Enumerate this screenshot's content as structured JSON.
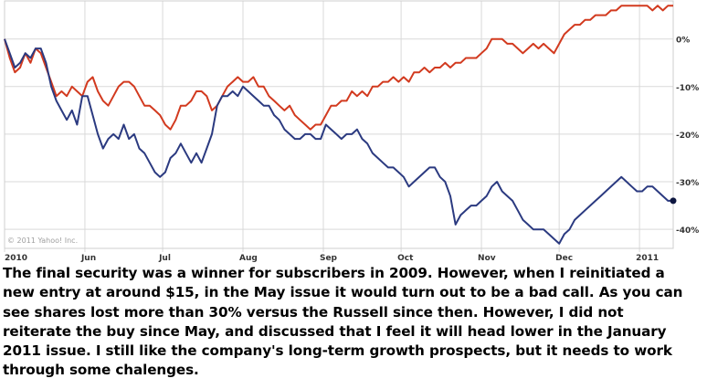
{
  "colors": {
    "russell": "#d23a1f",
    "security": "#2b3a80",
    "grid": "#d9d9d9",
    "axis": "#888888"
  },
  "chart_data": {
    "type": "line",
    "xlabel": "",
    "ylabel": "",
    "y_unit": "percent change",
    "ylim": [
      -44,
      8
    ],
    "x_domain": [
      "2010-05-01",
      "2011-01-14"
    ],
    "x_ticks": [
      {
        "label": "2010",
        "date": "2010-05-01"
      },
      {
        "label": "Jun",
        "date": "2010-06-01"
      },
      {
        "label": "Jul",
        "date": "2010-07-01"
      },
      {
        "label": "Aug",
        "date": "2010-08-01"
      },
      {
        "label": "Sep",
        "date": "2010-09-01"
      },
      {
        "label": "Oct",
        "date": "2010-10-01"
      },
      {
        "label": "Nov",
        "date": "2010-11-01"
      },
      {
        "label": "Dec",
        "date": "2010-12-01"
      },
      {
        "label": "2011",
        "date": "2011-01-01"
      }
    ],
    "y_ticks": [
      {
        "label": "0%",
        "value": 0
      },
      {
        "label": "-10%",
        "value": -10
      },
      {
        "label": "-20%",
        "value": -20
      },
      {
        "label": "-30%",
        "value": -30
      },
      {
        "label": "-40%",
        "value": -40
      }
    ],
    "grid": true,
    "credit": "© 2011 Yahoo! Inc.",
    "series": [
      {
        "color": "#d23a1f",
        "points": [
          [
            "2010-05-01",
            0
          ],
          [
            "2010-05-03",
            -4
          ],
          [
            "2010-05-05",
            -7
          ],
          [
            "2010-05-07",
            -6
          ],
          [
            "2010-05-09",
            -3
          ],
          [
            "2010-05-11",
            -5
          ],
          [
            "2010-05-13",
            -2
          ],
          [
            "2010-05-15",
            -3
          ],
          [
            "2010-05-17",
            -6
          ],
          [
            "2010-05-19",
            -9
          ],
          [
            "2010-05-21",
            -12
          ],
          [
            "2010-05-23",
            -11
          ],
          [
            "2010-05-25",
            -12
          ],
          [
            "2010-05-27",
            -10
          ],
          [
            "2010-05-29",
            -11
          ],
          [
            "2010-05-31",
            -12
          ],
          [
            "2010-06-02",
            -9
          ],
          [
            "2010-06-04",
            -8
          ],
          [
            "2010-06-06",
            -11
          ],
          [
            "2010-06-08",
            -13
          ],
          [
            "2010-06-10",
            -14
          ],
          [
            "2010-06-12",
            -12
          ],
          [
            "2010-06-14",
            -10
          ],
          [
            "2010-06-16",
            -9
          ],
          [
            "2010-06-18",
            -9
          ],
          [
            "2010-06-20",
            -10
          ],
          [
            "2010-06-22",
            -12
          ],
          [
            "2010-06-24",
            -14
          ],
          [
            "2010-06-26",
            -14
          ],
          [
            "2010-06-28",
            -15
          ],
          [
            "2010-06-30",
            -16
          ],
          [
            "2010-07-02",
            -18
          ],
          [
            "2010-07-04",
            -19
          ],
          [
            "2010-07-06",
            -17
          ],
          [
            "2010-07-08",
            -14
          ],
          [
            "2010-07-10",
            -14
          ],
          [
            "2010-07-12",
            -13
          ],
          [
            "2010-07-14",
            -11
          ],
          [
            "2010-07-16",
            -11
          ],
          [
            "2010-07-18",
            -12
          ],
          [
            "2010-07-20",
            -15
          ],
          [
            "2010-07-22",
            -14
          ],
          [
            "2010-07-24",
            -12
          ],
          [
            "2010-07-26",
            -10
          ],
          [
            "2010-07-28",
            -9
          ],
          [
            "2010-07-30",
            -8
          ],
          [
            "2010-08-01",
            -9
          ],
          [
            "2010-08-03",
            -9
          ],
          [
            "2010-08-05",
            -8
          ],
          [
            "2010-08-07",
            -10
          ],
          [
            "2010-08-09",
            -10
          ],
          [
            "2010-08-11",
            -12
          ],
          [
            "2010-08-13",
            -13
          ],
          [
            "2010-08-15",
            -14
          ],
          [
            "2010-08-17",
            -15
          ],
          [
            "2010-08-19",
            -14
          ],
          [
            "2010-08-21",
            -16
          ],
          [
            "2010-08-23",
            -17
          ],
          [
            "2010-08-25",
            -18
          ],
          [
            "2010-08-27",
            -19
          ],
          [
            "2010-08-29",
            -18
          ],
          [
            "2010-08-31",
            -18
          ],
          [
            "2010-09-02",
            -16
          ],
          [
            "2010-09-04",
            -14
          ],
          [
            "2010-09-06",
            -14
          ],
          [
            "2010-09-08",
            -13
          ],
          [
            "2010-09-10",
            -13
          ],
          [
            "2010-09-12",
            -11
          ],
          [
            "2010-09-14",
            -12
          ],
          [
            "2010-09-16",
            -11
          ],
          [
            "2010-09-18",
            -12
          ],
          [
            "2010-09-20",
            -10
          ],
          [
            "2010-09-22",
            -10
          ],
          [
            "2010-09-24",
            -9
          ],
          [
            "2010-09-26",
            -9
          ],
          [
            "2010-09-28",
            -8
          ],
          [
            "2010-09-30",
            -9
          ],
          [
            "2010-10-02",
            -8
          ],
          [
            "2010-10-04",
            -9
          ],
          [
            "2010-10-06",
            -7
          ],
          [
            "2010-10-08",
            -7
          ],
          [
            "2010-10-10",
            -6
          ],
          [
            "2010-10-12",
            -7
          ],
          [
            "2010-10-14",
            -6
          ],
          [
            "2010-10-16",
            -6
          ],
          [
            "2010-10-18",
            -5
          ],
          [
            "2010-10-20",
            -6
          ],
          [
            "2010-10-22",
            -5
          ],
          [
            "2010-10-24",
            -5
          ],
          [
            "2010-10-26",
            -4
          ],
          [
            "2010-10-28",
            -4
          ],
          [
            "2010-10-30",
            -4
          ],
          [
            "2010-11-01",
            -3
          ],
          [
            "2010-11-03",
            -2
          ],
          [
            "2010-11-05",
            0
          ],
          [
            "2010-11-07",
            0
          ],
          [
            "2010-11-09",
            0
          ],
          [
            "2010-11-11",
            -1
          ],
          [
            "2010-11-13",
            -1
          ],
          [
            "2010-11-15",
            -2
          ],
          [
            "2010-11-17",
            -3
          ],
          [
            "2010-11-19",
            -2
          ],
          [
            "2010-11-21",
            -1
          ],
          [
            "2010-11-23",
            -2
          ],
          [
            "2010-11-25",
            -1
          ],
          [
            "2010-11-27",
            -2
          ],
          [
            "2010-11-29",
            -3
          ],
          [
            "2010-12-01",
            -1
          ],
          [
            "2010-12-03",
            1
          ],
          [
            "2010-12-05",
            2
          ],
          [
            "2010-12-07",
            3
          ],
          [
            "2010-12-09",
            3
          ],
          [
            "2010-12-11",
            4
          ],
          [
            "2010-12-13",
            4
          ],
          [
            "2010-12-15",
            5
          ],
          [
            "2010-12-17",
            5
          ],
          [
            "2010-12-19",
            5
          ],
          [
            "2010-12-21",
            6
          ],
          [
            "2010-12-23",
            6
          ],
          [
            "2010-12-25",
            7
          ],
          [
            "2010-12-27",
            7
          ],
          [
            "2010-12-29",
            7
          ],
          [
            "2010-12-31",
            7
          ],
          [
            "2011-01-02",
            7
          ],
          [
            "2011-01-04",
            7
          ],
          [
            "2011-01-06",
            6
          ],
          [
            "2011-01-08",
            7
          ],
          [
            "2011-01-10",
            6
          ],
          [
            "2011-01-12",
            7
          ],
          [
            "2011-01-14",
            7
          ]
        ]
      },
      {
        "color": "#2b3a80",
        "points": [
          [
            "2010-05-01",
            0
          ],
          [
            "2010-05-03",
            -3
          ],
          [
            "2010-05-05",
            -6
          ],
          [
            "2010-05-07",
            -5
          ],
          [
            "2010-05-09",
            -3
          ],
          [
            "2010-05-11",
            -4
          ],
          [
            "2010-05-13",
            -2
          ],
          [
            "2010-05-15",
            -2
          ],
          [
            "2010-05-17",
            -5
          ],
          [
            "2010-05-19",
            -10
          ],
          [
            "2010-05-21",
            -13
          ],
          [
            "2010-05-23",
            -15
          ],
          [
            "2010-05-25",
            -17
          ],
          [
            "2010-05-27",
            -15
          ],
          [
            "2010-05-29",
            -18
          ],
          [
            "2010-05-31",
            -12
          ],
          [
            "2010-06-02",
            -12
          ],
          [
            "2010-06-04",
            -16
          ],
          [
            "2010-06-06",
            -20
          ],
          [
            "2010-06-08",
            -23
          ],
          [
            "2010-06-10",
            -21
          ],
          [
            "2010-06-12",
            -20
          ],
          [
            "2010-06-14",
            -21
          ],
          [
            "2010-06-16",
            -18
          ],
          [
            "2010-06-18",
            -21
          ],
          [
            "2010-06-20",
            -20
          ],
          [
            "2010-06-22",
            -23
          ],
          [
            "2010-06-24",
            -24
          ],
          [
            "2010-06-26",
            -26
          ],
          [
            "2010-06-28",
            -28
          ],
          [
            "2010-06-30",
            -29
          ],
          [
            "2010-07-02",
            -28
          ],
          [
            "2010-07-04",
            -25
          ],
          [
            "2010-07-06",
            -24
          ],
          [
            "2010-07-08",
            -22
          ],
          [
            "2010-07-10",
            -24
          ],
          [
            "2010-07-12",
            -26
          ],
          [
            "2010-07-14",
            -24
          ],
          [
            "2010-07-16",
            -26
          ],
          [
            "2010-07-18",
            -23
          ],
          [
            "2010-07-20",
            -20
          ],
          [
            "2010-07-22",
            -14
          ],
          [
            "2010-07-24",
            -12
          ],
          [
            "2010-07-26",
            -12
          ],
          [
            "2010-07-28",
            -11
          ],
          [
            "2010-07-30",
            -12
          ],
          [
            "2010-08-01",
            -10
          ],
          [
            "2010-08-03",
            -11
          ],
          [
            "2010-08-05",
            -12
          ],
          [
            "2010-08-07",
            -13
          ],
          [
            "2010-08-09",
            -14
          ],
          [
            "2010-08-11",
            -14
          ],
          [
            "2010-08-13",
            -16
          ],
          [
            "2010-08-15",
            -17
          ],
          [
            "2010-08-17",
            -19
          ],
          [
            "2010-08-19",
            -20
          ],
          [
            "2010-08-21",
            -21
          ],
          [
            "2010-08-23",
            -21
          ],
          [
            "2010-08-25",
            -20
          ],
          [
            "2010-08-27",
            -20
          ],
          [
            "2010-08-29",
            -21
          ],
          [
            "2010-08-31",
            -21
          ],
          [
            "2010-09-02",
            -18
          ],
          [
            "2010-09-04",
            -19
          ],
          [
            "2010-09-06",
            -20
          ],
          [
            "2010-09-08",
            -21
          ],
          [
            "2010-09-10",
            -20
          ],
          [
            "2010-09-12",
            -20
          ],
          [
            "2010-09-14",
            -19
          ],
          [
            "2010-09-16",
            -21
          ],
          [
            "2010-09-18",
            -22
          ],
          [
            "2010-09-20",
            -24
          ],
          [
            "2010-09-22",
            -25
          ],
          [
            "2010-09-24",
            -26
          ],
          [
            "2010-09-26",
            -27
          ],
          [
            "2010-09-28",
            -27
          ],
          [
            "2010-09-30",
            -28
          ],
          [
            "2010-10-02",
            -29
          ],
          [
            "2010-10-04",
            -31
          ],
          [
            "2010-10-06",
            -30
          ],
          [
            "2010-10-08",
            -29
          ],
          [
            "2010-10-10",
            -28
          ],
          [
            "2010-10-12",
            -27
          ],
          [
            "2010-10-14",
            -27
          ],
          [
            "2010-10-16",
            -29
          ],
          [
            "2010-10-18",
            -30
          ],
          [
            "2010-10-20",
            -33
          ],
          [
            "2010-10-22",
            -39
          ],
          [
            "2010-10-24",
            -37
          ],
          [
            "2010-10-26",
            -36
          ],
          [
            "2010-10-28",
            -35
          ],
          [
            "2010-10-30",
            -35
          ],
          [
            "2010-11-01",
            -34
          ],
          [
            "2010-11-03",
            -33
          ],
          [
            "2010-11-05",
            -31
          ],
          [
            "2010-11-07",
            -30
          ],
          [
            "2010-11-09",
            -32
          ],
          [
            "2010-11-11",
            -33
          ],
          [
            "2010-11-13",
            -34
          ],
          [
            "2010-11-15",
            -36
          ],
          [
            "2010-11-17",
            -38
          ],
          [
            "2010-11-19",
            -39
          ],
          [
            "2010-11-21",
            -40
          ],
          [
            "2010-11-23",
            -40
          ],
          [
            "2010-11-25",
            -40
          ],
          [
            "2010-11-27",
            -41
          ],
          [
            "2010-11-29",
            -42
          ],
          [
            "2010-12-01",
            -43
          ],
          [
            "2010-12-03",
            -41
          ],
          [
            "2010-12-05",
            -40
          ],
          [
            "2010-12-07",
            -38
          ],
          [
            "2010-12-09",
            -37
          ],
          [
            "2010-12-11",
            -36
          ],
          [
            "2010-12-13",
            -35
          ],
          [
            "2010-12-15",
            -34
          ],
          [
            "2010-12-17",
            -33
          ],
          [
            "2010-12-19",
            -32
          ],
          [
            "2010-12-21",
            -31
          ],
          [
            "2010-12-23",
            -30
          ],
          [
            "2010-12-25",
            -29
          ],
          [
            "2010-12-27",
            -30
          ],
          [
            "2010-12-29",
            -31
          ],
          [
            "2010-12-31",
            -32
          ],
          [
            "2011-01-02",
            -32
          ],
          [
            "2011-01-04",
            -31
          ],
          [
            "2011-01-06",
            -31
          ],
          [
            "2011-01-08",
            -32
          ],
          [
            "2011-01-10",
            -33
          ],
          [
            "2011-01-12",
            -34
          ],
          [
            "2011-01-14",
            -34
          ]
        ]
      }
    ]
  },
  "caption": {
    "lines": [
      "The final security was a winner for subscribers in 2009. However, when I reinitiated a",
      "new entry at around $15, in the May issue it would turn out to be a bad call. As you can",
      "see shares lost more than 30% versus the Russell since then. However, I did not",
      "reiterate the buy since May, and discussed that I feel it will head lower in the January",
      "2011 issue. I still like the company's long-term growth prospects, but it needs to work",
      "through some chalenges."
    ]
  }
}
